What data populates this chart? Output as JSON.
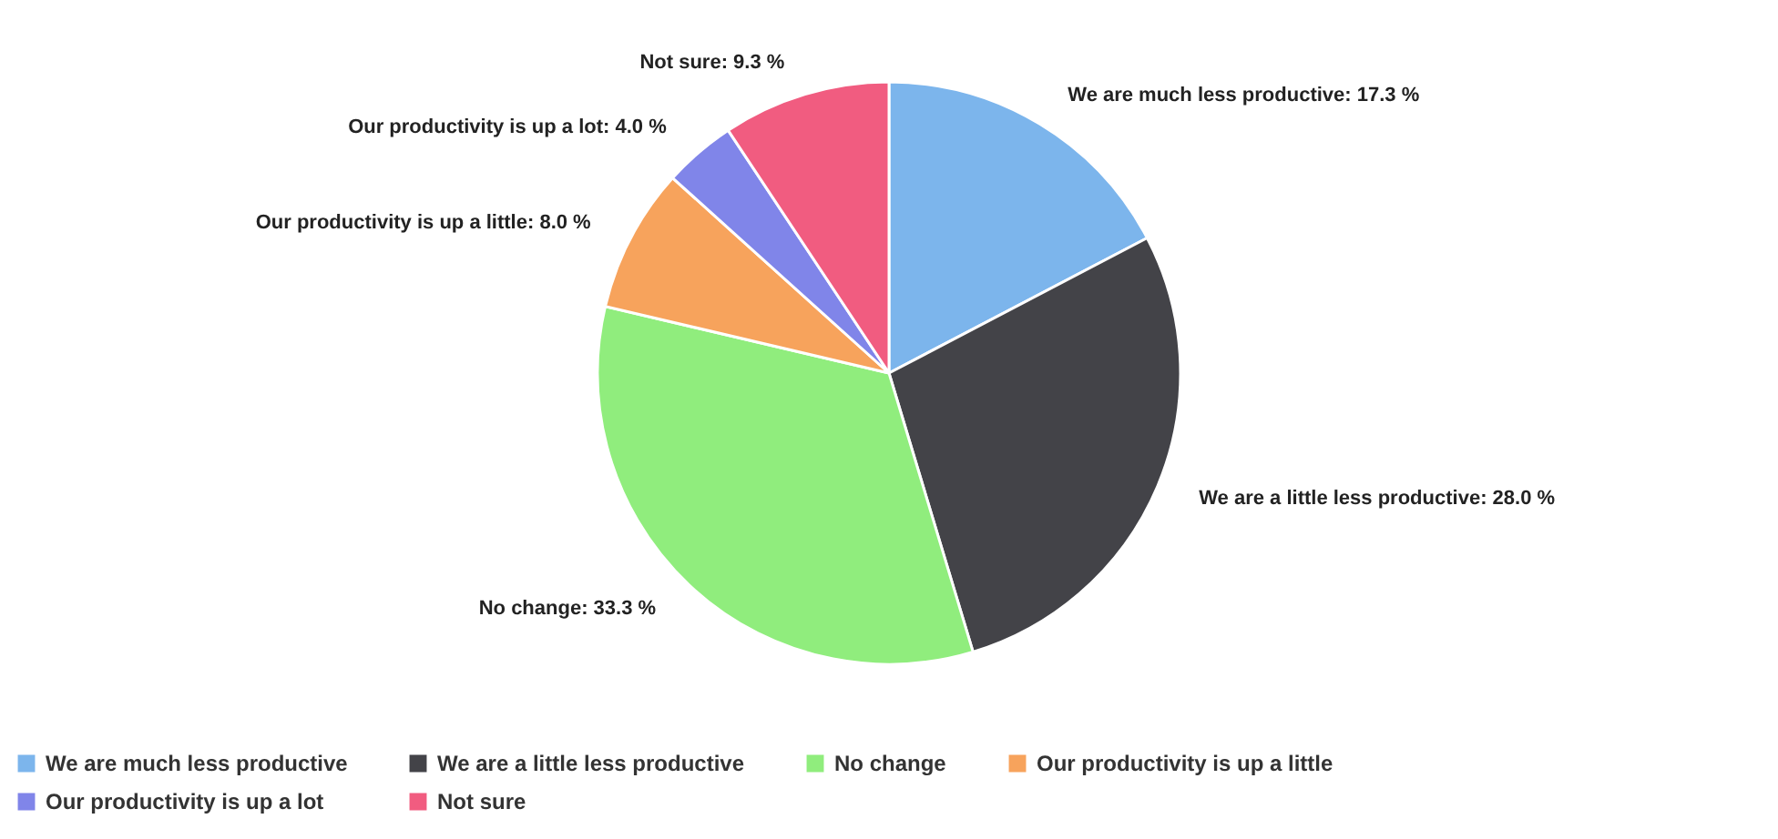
{
  "chart_data": {
    "type": "pie",
    "categories": [
      "We are much less productive",
      "We are a little less productive",
      "No change",
      "Our productivity is up a little",
      "Our productivity is up a lot",
      "Not sure"
    ],
    "values": [
      17.3,
      28.0,
      33.3,
      8.0,
      4.0,
      9.3
    ],
    "value_labels": [
      ": 17.3 %",
      ": 28.0 %",
      ": 33.3 %",
      ": 8.0 %",
      ": 4.0 %",
      ": 9.3 %"
    ],
    "colors": [
      "#7cb5ec",
      "#434348",
      "#90ed7d",
      "#f7a35c",
      "#8085e9",
      "#f15c80"
    ],
    "legend": "bottom"
  }
}
